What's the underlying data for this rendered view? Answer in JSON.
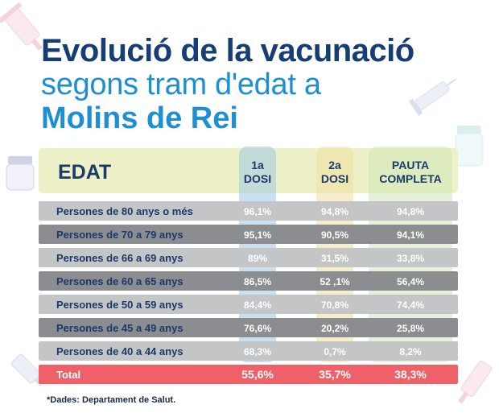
{
  "title": {
    "line1": "Evolució de la vacunació",
    "line2": "segons tram d'edat a",
    "line3": "Molins de Rei"
  },
  "table": {
    "headers": {
      "edat": "EDAT",
      "dose1_a": "1a",
      "dose1_b": "DOSI",
      "dose2_a": "2a",
      "dose2_b": "DOSI",
      "full_a": "PAUTA",
      "full_b": "COMPLETA"
    },
    "rows": [
      {
        "label": "Persones de 80 anys o més",
        "dose1": "96,1%",
        "dose2": "94,8%",
        "full": "94,8%"
      },
      {
        "label": "Persones de 70 a 79 anys",
        "dose1": "95,1%",
        "dose2": "90,5%",
        "full": "94,1%"
      },
      {
        "label": "Persones de 66 a 69 anys",
        "dose1": "89%",
        "dose2": "31,5%",
        "full": "33,8%"
      },
      {
        "label": "Persones de 60 a 65 anys",
        "dose1": "86,5%",
        "dose2": "52 ,1%",
        "full": "56,4%"
      },
      {
        "label": "Persones de 50 a 59 anys",
        "dose1": "84,4%",
        "dose2": "70,8%",
        "full": "74,4%"
      },
      {
        "label": "Persones de 45 a 49 anys",
        "dose1": "76,6%",
        "dose2": "20,2%",
        "full": "25,8%"
      },
      {
        "label": "Persones de 40 a 44 anys",
        "dose1": "68,3%",
        "dose2": "0,7%",
        "full": "8,2%"
      }
    ],
    "total": {
      "label": "Total",
      "dose1": "55,6%",
      "dose2": "35,7%",
      "full": "38,3%"
    }
  },
  "footnote": "*Dades: Departament de Salut.",
  "colors": {
    "title_dark": "#153f74",
    "title_blue": "#1d8fd3",
    "header_bg": "#eef1c8",
    "row_light": "#c4c5c7",
    "row_dark": "#8c8d90",
    "total_bg": "#ef6068",
    "dose1_band": "#9ec7e6",
    "dose2_band": "#f1df9f",
    "full_band": "#cfe6b8"
  },
  "decorations": [
    "syringe-icon",
    "syringe-icon",
    "vaccine-vial-icon",
    "vaccine-vial-icon",
    "syringe-icon",
    "syringe-icon"
  ]
}
